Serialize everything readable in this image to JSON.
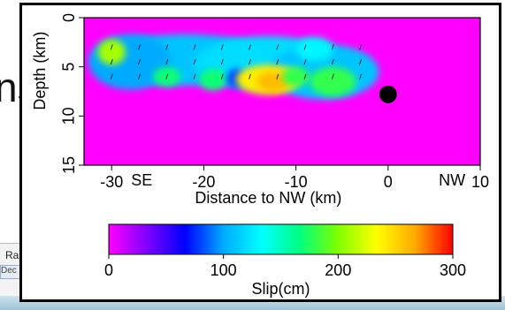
{
  "background": {
    "overlay_text": "ns",
    "panel_title": "Ra",
    "panel_field": "Dec"
  },
  "chart_data": {
    "type": "heatmap",
    "title": "",
    "xlabel": "Distance to NW (km)",
    "ylabel": "Depth (km)",
    "xlim": [
      -33,
      10
    ],
    "ylim": [
      15,
      0
    ],
    "xticks": [
      -30,
      -20,
      -10,
      0,
      10
    ],
    "xtick_labels": [
      "-30",
      "-20",
      "-10",
      "0",
      "10"
    ],
    "yticks": [
      0,
      5,
      10,
      15
    ],
    "ytick_labels": [
      "0",
      "5",
      "10",
      "15"
    ],
    "direction_labels": {
      "left": "SE",
      "right": "NW"
    },
    "hypocenter": {
      "x": 0,
      "y": 7.8
    },
    "background_color": "#ff00ff",
    "grid": false,
    "slip_patches": [
      {
        "x": -22,
        "y": 4.3,
        "rx": 10,
        "ry": 2.6,
        "value": 110
      },
      {
        "x": -13,
        "y": 4.6,
        "rx": 8,
        "ry": 2.7,
        "value": 120
      },
      {
        "x": -7,
        "y": 5.5,
        "rx": 6,
        "ry": 2.8,
        "value": 110
      },
      {
        "x": -28,
        "y": 4.5,
        "rx": 4.5,
        "ry": 2.8,
        "value": 100
      },
      {
        "x": -30,
        "y": 3.5,
        "rx": 1.5,
        "ry": 1.3,
        "value": 210
      },
      {
        "x": -19,
        "y": 6.3,
        "rx": 1.5,
        "ry": 1.1,
        "value": 170
      },
      {
        "x": -16.5,
        "y": 6.2,
        "rx": 1.0,
        "ry": 1.0,
        "value": 80
      },
      {
        "x": -13,
        "y": 6.3,
        "rx": 3.5,
        "ry": 1.5,
        "value": 240
      },
      {
        "x": -12.5,
        "y": 6.5,
        "rx": 1.8,
        "ry": 1.0,
        "value": 260
      },
      {
        "x": -10,
        "y": 6.0,
        "rx": 1.5,
        "ry": 1.0,
        "value": 180
      },
      {
        "x": -6,
        "y": 6.5,
        "rx": 2.5,
        "ry": 1.5,
        "value": 180
      },
      {
        "x": -24,
        "y": 6.0,
        "rx": 1.5,
        "ry": 1.0,
        "value": 170
      },
      {
        "x": -8,
        "y": 3.2,
        "rx": 2.0,
        "ry": 1.2,
        "value": 130
      }
    ],
    "colorbar": {
      "label": "Slip(cm)",
      "min": 0,
      "max": 300,
      "ticks": [
        0,
        100,
        200,
        300
      ],
      "tick_labels": [
        "0",
        "100",
        "200",
        "300"
      ],
      "colors": [
        "#ff00ff",
        "#8000ff",
        "#0000ff",
        "#00aaff",
        "#00ffff",
        "#00ff80",
        "#80ff00",
        "#ffff00",
        "#ffaa00",
        "#ff0000"
      ]
    }
  }
}
